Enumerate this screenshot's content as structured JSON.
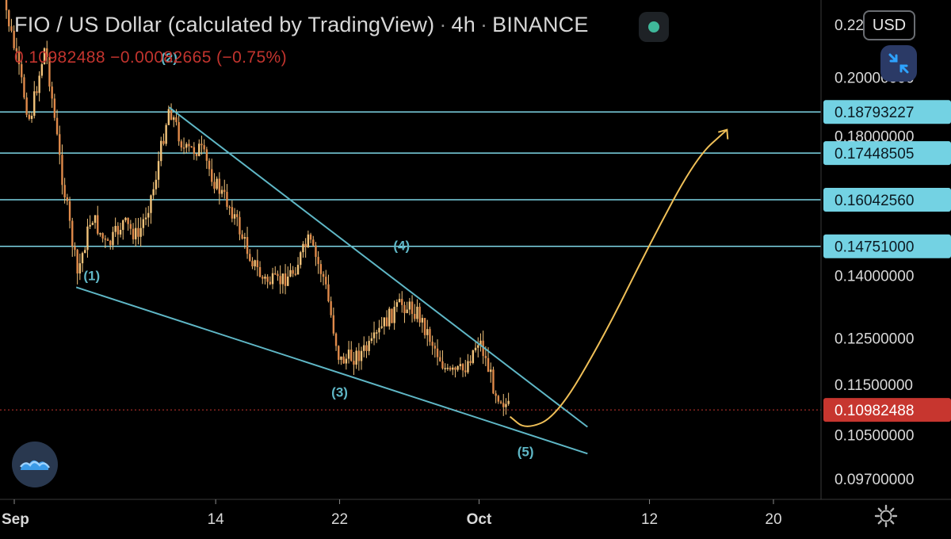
{
  "header": {
    "symbol": "FIO / US Dollar (calculated by TradingView)",
    "interval": "4h",
    "exchange": "BINANCE",
    "ohlc_line": "0.10982488 −0.00082665 (−0.75%)"
  },
  "controls": {
    "currency_label": "USD",
    "collapse_icon": "collapse-arrows-icon",
    "settings_icon": "gear-icon",
    "logo_icon": "tradingview-logo-icon"
  },
  "colors": {
    "background": "#000000",
    "level_line": "#7ed6e6",
    "trendline": "#5fb7c6",
    "forecast": "#f0c058",
    "candle": "#f2c37a",
    "last_price": "#c7362f",
    "wave_label": "#5fb7c6"
  },
  "chart_data": {
    "type": "candlestick",
    "scale": "log",
    "ylim": [
      0.094,
      0.23
    ],
    "x_ticks": [
      "Sep",
      "14",
      "22",
      "Oct",
      "12",
      "20"
    ],
    "y_ticks": [
      "0.22000000",
      "0.20000000",
      "0.18000000",
      "0.14000000",
      "0.12500000",
      "0.11500000",
      "0.10500000",
      "0.09700000"
    ],
    "price_levels": [
      {
        "value": 0.18793227,
        "label": "0.18793227"
      },
      {
        "value": 0.17448505,
        "label": "0.17448505"
      },
      {
        "value": 0.1604256,
        "label": "0.16042560"
      },
      {
        "value": 0.14751,
        "label": "0.14751000"
      }
    ],
    "last_price": {
      "value": 0.10982488,
      "label": "0.10982488"
    },
    "wave_labels": [
      {
        "text": "(1)",
        "date": "Sep 6",
        "price": 0.1388
      },
      {
        "text": "(2)",
        "date": "Sep 11",
        "price": 0.2055
      },
      {
        "text": "(3)",
        "date": "Sep 22",
        "price": 0.1125
      },
      {
        "text": "(4)",
        "date": "Sep 26",
        "price": 0.1465
      },
      {
        "text": "(5)",
        "date": "Oct 4",
        "price": 0.101
      }
    ],
    "trendlines": [
      {
        "name": "upper",
        "from": {
          "date": "Sep 11",
          "price": 0.1895
        },
        "to": {
          "date": "Oct 8",
          "price": 0.1065
        }
      },
      {
        "name": "lower",
        "from": {
          "date": "Sep 5",
          "price": 0.137
        },
        "to": {
          "date": "Oct 8",
          "price": 0.1015
        }
      }
    ],
    "forecast_path": [
      {
        "date": "Oct 3",
        "price": 0.1085
      },
      {
        "date": "Oct 4",
        "price": 0.106
      },
      {
        "date": "Oct 6",
        "price": 0.1085
      },
      {
        "date": "Oct 9",
        "price": 0.125
      },
      {
        "date": "Oct 12",
        "price": 0.148
      },
      {
        "date": "Oct 15",
        "price": 0.173
      },
      {
        "date": "Oct 17",
        "price": 0.182
      }
    ],
    "price_path": [
      {
        "date": "Aug 31",
        "price": 0.24
      },
      {
        "date": "Sep 2",
        "price": 0.185
      },
      {
        "date": "Sep 3",
        "price": 0.212
      },
      {
        "date": "Sep 4",
        "price": 0.17
      },
      {
        "date": "Sep 5",
        "price": 0.142
      },
      {
        "date": "Sep 5",
        "price": 0.139
      },
      {
        "date": "Sep 6",
        "price": 0.156
      },
      {
        "date": "Sep 7",
        "price": 0.147
      },
      {
        "date": "Sep 8",
        "price": 0.154
      },
      {
        "date": "Sep 9",
        "price": 0.15
      },
      {
        "date": "Sep 10",
        "price": 0.164
      },
      {
        "date": "Sep 11",
        "price": 0.19
      },
      {
        "date": "Sep 12",
        "price": 0.175
      },
      {
        "date": "Sep 13",
        "price": 0.176
      },
      {
        "date": "Sep 14",
        "price": 0.165
      },
      {
        "date": "Sep 15",
        "price": 0.158
      },
      {
        "date": "Sep 16",
        "price": 0.147
      },
      {
        "date": "Sep 17",
        "price": 0.139
      },
      {
        "date": "Sep 18",
        "price": 0.138
      },
      {
        "date": "Sep 19",
        "price": 0.141
      },
      {
        "date": "Sep 20",
        "price": 0.149
      },
      {
        "date": "Sep 21",
        "price": 0.139
      },
      {
        "date": "Sep 22",
        "price": 0.12
      },
      {
        "date": "Sep 23",
        "price": 0.121
      },
      {
        "date": "Sep 24",
        "price": 0.123
      },
      {
        "date": "Sep 25",
        "price": 0.129
      },
      {
        "date": "Sep 26",
        "price": 0.133
      },
      {
        "date": "Sep 27",
        "price": 0.131
      },
      {
        "date": "Sep 28",
        "price": 0.124
      },
      {
        "date": "Sep 29",
        "price": 0.117
      },
      {
        "date": "Sep 30",
        "price": 0.118
      },
      {
        "date": "Oct 1",
        "price": 0.125
      },
      {
        "date": "Oct 2",
        "price": 0.114
      },
      {
        "date": "Oct 3",
        "price": 0.1098
      }
    ]
  }
}
